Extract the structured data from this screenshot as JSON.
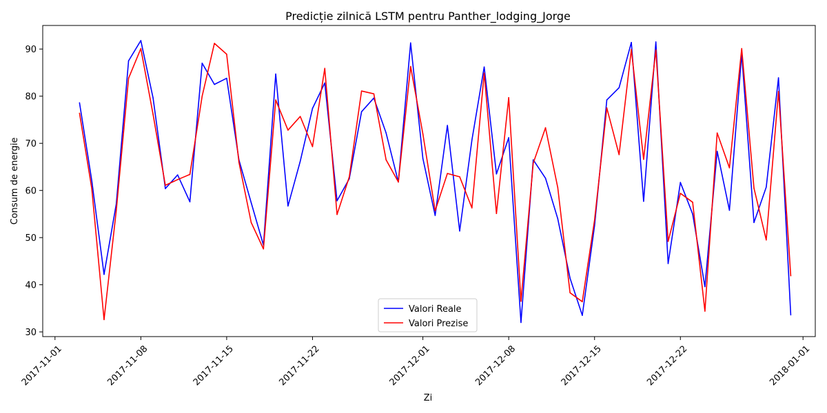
{
  "chart_data": {
    "type": "line",
    "title": "Predicție zilnică LSTM pentru Panther_lodging_Jorge",
    "xlabel": "Zi",
    "ylabel": "Consum de energie",
    "x_tick_labels": [
      "2017-11-01",
      "2017-11-08",
      "2017-11-15",
      "2017-11-22",
      "2017-12-01",
      "2017-12-08",
      "2017-12-15",
      "2017-12-22",
      "2018-01-01"
    ],
    "y_tick_labels": [
      "30",
      "40",
      "50",
      "60",
      "70",
      "80",
      "90"
    ],
    "xlim": [
      "2017-10-31",
      "2018-01-02"
    ],
    "ylim": [
      29,
      95
    ],
    "grid": false,
    "legend_position": "bottom-center",
    "series": [
      {
        "name": "Valori Reale",
        "color": "#0000ff",
        "x": [
          "2017-11-03",
          "2017-11-04",
          "2017-11-05",
          "2017-11-06",
          "2017-11-07",
          "2017-11-08",
          "2017-11-09",
          "2017-11-10",
          "2017-11-11",
          "2017-11-12",
          "2017-11-13",
          "2017-11-14",
          "2017-11-15",
          "2017-11-16",
          "2017-11-17",
          "2017-11-18",
          "2017-11-19",
          "2017-11-20",
          "2017-11-21",
          "2017-11-22",
          "2017-11-23",
          "2017-11-24",
          "2017-11-25",
          "2017-11-26",
          "2017-11-27",
          "2017-11-28",
          "2017-11-29",
          "2017-11-30",
          "2017-12-01",
          "2017-12-02",
          "2017-12-03",
          "2017-12-04",
          "2017-12-05",
          "2017-12-06",
          "2017-12-07",
          "2017-12-08",
          "2017-12-09",
          "2017-12-10",
          "2017-12-11",
          "2017-12-12",
          "2017-12-13",
          "2017-12-14",
          "2017-12-15",
          "2017-12-16",
          "2017-12-17",
          "2017-12-18",
          "2017-12-19",
          "2017-12-20",
          "2017-12-21",
          "2017-12-22",
          "2017-12-23",
          "2017-12-24",
          "2017-12-25",
          "2017-12-26",
          "2017-12-27",
          "2017-12-28",
          "2017-12-29",
          "2017-12-30",
          "2017-12-31"
        ],
        "values": [
          78.6,
          62.1,
          42.2,
          57.2,
          87.5,
          91.8,
          79.6,
          60.4,
          63.3,
          57.6,
          87.0,
          82.5,
          83.8,
          66.5,
          57.4,
          48.4,
          84.7,
          56.7,
          66.2,
          77.4,
          82.8,
          57.8,
          62.5,
          76.7,
          79.6,
          72.2,
          61.8,
          91.3,
          66.8,
          54.7,
          73.8,
          51.4,
          70.7,
          86.2,
          63.5,
          71.2,
          32.0,
          66.5,
          62.6,
          54.0,
          41.4,
          33.5,
          52.5,
          79.2,
          81.8,
          91.4,
          57.7,
          91.5,
          44.5,
          61.7,
          55.0,
          39.6,
          68.3,
          55.8,
          89.0,
          53.2,
          60.7,
          83.9,
          33.6
        ]
      },
      {
        "name": "Valori Prezise",
        "color": "#ff0000",
        "x": [
          "2017-11-03",
          "2017-11-04",
          "2017-11-05",
          "2017-11-06",
          "2017-11-07",
          "2017-11-08",
          "2017-11-09",
          "2017-11-10",
          "2017-11-11",
          "2017-11-12",
          "2017-11-13",
          "2017-11-14",
          "2017-11-15",
          "2017-11-16",
          "2017-11-17",
          "2017-11-18",
          "2017-11-19",
          "2017-11-20",
          "2017-11-21",
          "2017-11-22",
          "2017-11-23",
          "2017-11-24",
          "2017-11-25",
          "2017-11-26",
          "2017-11-27",
          "2017-11-28",
          "2017-11-29",
          "2017-11-30",
          "2017-12-01",
          "2017-12-02",
          "2017-12-03",
          "2017-12-04",
          "2017-12-05",
          "2017-12-06",
          "2017-12-07",
          "2017-12-08",
          "2017-12-09",
          "2017-12-10",
          "2017-12-11",
          "2017-12-12",
          "2017-12-13",
          "2017-12-14",
          "2017-12-15",
          "2017-12-16",
          "2017-12-17",
          "2017-12-18",
          "2017-12-19",
          "2017-12-20",
          "2017-12-21",
          "2017-12-22",
          "2017-12-23",
          "2017-12-24",
          "2017-12-25",
          "2017-12-26",
          "2017-12-27",
          "2017-12-28",
          "2017-12-29",
          "2017-12-30",
          "2017-12-31"
        ],
        "values": [
          76.4,
          60.4,
          32.6,
          55.8,
          83.8,
          90.1,
          76.1,
          61.1,
          62.3,
          63.4,
          80.0,
          91.2,
          88.9,
          66.0,
          53.2,
          47.6,
          79.2,
          72.8,
          75.7,
          69.3,
          85.9,
          54.9,
          62.9,
          81.1,
          80.5,
          66.5,
          61.8,
          86.3,
          72.0,
          55.7,
          63.6,
          62.9,
          56.3,
          84.9,
          55.1,
          79.7,
          36.5,
          65.8,
          73.3,
          60.6,
          38.3,
          36.4,
          53.7,
          77.5,
          67.6,
          89.9,
          66.6,
          89.8,
          49.2,
          59.4,
          57.5,
          34.4,
          72.2,
          64.8,
          90.1,
          60.5,
          49.5,
          81.0,
          41.9
        ]
      }
    ]
  }
}
